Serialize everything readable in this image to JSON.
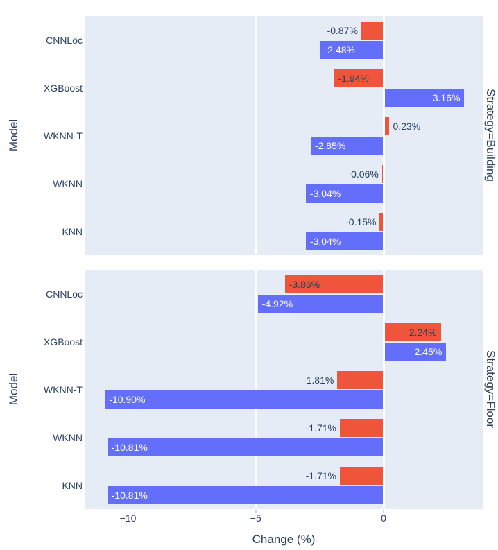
{
  "figure": {
    "background": "#FFFFFF",
    "plot_background": "#E5ECF6",
    "font_color": "#2A3F5F",
    "gridline_color": "#FFFFFF"
  },
  "chart_data": {
    "type": "bar",
    "orientation": "horizontal",
    "barmode": "group",
    "title": "",
    "xlabel": "Change (%)",
    "ylabel": "Model",
    "legend": "none",
    "grid": true,
    "x_range": [
      -11.7,
      3.9
    ],
    "x_ticks": [
      {
        "value": -10,
        "label": "−10"
      },
      {
        "value": -5,
        "label": "−5"
      },
      {
        "value": 0,
        "label": "0"
      }
    ],
    "categories": [
      "CNNLoc",
      "XGBoost",
      "WKNN-T",
      "WKNN",
      "KNN"
    ],
    "outside_label_color": "#2A3F5F",
    "facets": [
      {
        "label": "Strategy=Building",
        "series": [
          {
            "color": "#EF553B",
            "inside_label_color": "#2A3F5F",
            "values": [
              -0.87,
              -1.94,
              0.23,
              -0.06,
              -0.15
            ],
            "bar_labels": [
              "-0.87%",
              "-1.94%",
              "0.23%",
              "-0.06%",
              "-0.15%"
            ],
            "label_positions": [
              "outside",
              "inside",
              "outside",
              "outside",
              "outside"
            ]
          },
          {
            "color": "#636EFA",
            "inside_label_color": "#FFFFFF",
            "values": [
              -2.48,
              3.16,
              -2.85,
              -3.04,
              -3.04
            ],
            "bar_labels": [
              "-2.48%",
              "3.16%",
              "-2.85%",
              "-3.04%",
              "-3.04%"
            ],
            "label_positions": [
              "inside",
              "inside",
              "inside",
              "inside",
              "inside"
            ]
          }
        ]
      },
      {
        "label": "Strategy=Floor",
        "series": [
          {
            "color": "#EF553B",
            "inside_label_color": "#2A3F5F",
            "values": [
              -3.86,
              2.24,
              -1.81,
              -1.71,
              -1.71
            ],
            "bar_labels": [
              "-3.86%",
              "2.24%",
              "-1.81%",
              "-1.71%",
              "-1.71%"
            ],
            "label_positions": [
              "inside",
              "inside",
              "outside",
              "outside",
              "outside"
            ]
          },
          {
            "color": "#636EFA",
            "inside_label_color": "#FFFFFF",
            "values": [
              -4.92,
              2.45,
              -10.9,
              -10.81,
              -10.81
            ],
            "bar_labels": [
              "-4.92%",
              "2.45%",
              "-10.90%",
              "-10.81%",
              "-10.81%"
            ],
            "label_positions": [
              "inside",
              "inside",
              "inside",
              "inside",
              "inside"
            ]
          }
        ]
      }
    ]
  }
}
